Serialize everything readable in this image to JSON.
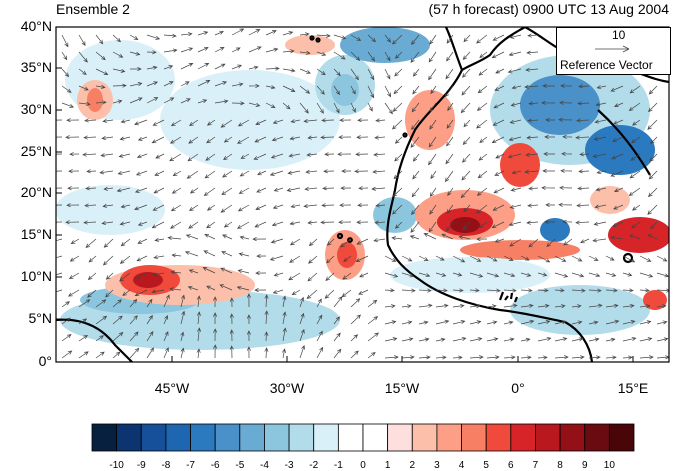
{
  "header": {
    "panel_title": "Ensemble 2",
    "forecast_info": "(57 h forecast) 0900 UTC 13 Aug 2004"
  },
  "map": {
    "lat_ticks": [
      "40°N",
      "35°N",
      "30°N",
      "25°N",
      "20°N",
      "15°N",
      "10°N",
      "5°N",
      "0°"
    ],
    "lon_ticks": [
      "45°W",
      "30°W",
      "15°W",
      "0°",
      "15°E"
    ],
    "reference_vector": {
      "magnitude": "10",
      "label": "Reference Vector"
    }
  },
  "colorbar": {
    "labels": [
      "-10",
      "-9",
      "-8",
      "-7",
      "-6",
      "-5",
      "-4",
      "-3",
      "-2",
      "-1",
      "0",
      "1",
      "2",
      "3",
      "4",
      "5",
      "6",
      "7",
      "8",
      "9",
      "10"
    ],
    "colors": [
      "#08203f",
      "#0b3470",
      "#16509a",
      "#1f66b0",
      "#2b79be",
      "#4a91c9",
      "#6aabd4",
      "#8cc6de",
      "#b2dcea",
      "#daf0f8",
      "#ffffff",
      "#ffffff",
      "#fde0dd",
      "#fcbfaa",
      "#fc9f86",
      "#f77f64",
      "#ef4a3b",
      "#d62428",
      "#b9181f",
      "#931017",
      "#6a0b12",
      "#4a0508"
    ]
  }
}
